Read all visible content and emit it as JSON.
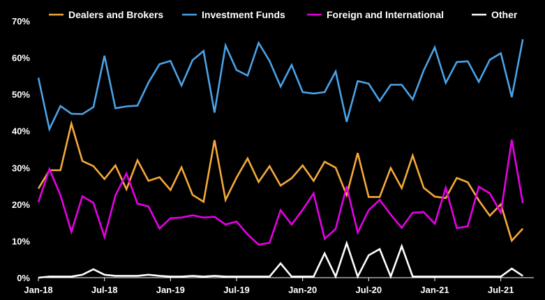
{
  "chart_data": {
    "type": "line",
    "title": "",
    "xlabel": "",
    "ylabel": "",
    "ylim": [
      0,
      70
    ],
    "y_ticks": [
      "0%",
      "10%",
      "20%",
      "30%",
      "40%",
      "50%",
      "60%",
      "70%"
    ],
    "x_ticks": [
      "Jan-18",
      "Jul-18",
      "Jan-19",
      "Jul-19",
      "Jan-20",
      "Jul-20",
      "Jan-21",
      "Jul-21"
    ],
    "x_start": "2018-01",
    "x_end": "2021-10",
    "grid": false,
    "legend_position": "top",
    "series": [
      {
        "name": "Dealers and Brokers",
        "color": "#f5a93b",
        "values": [
          24.3,
          29.3,
          29.3,
          42.0,
          31.8,
          30.4,
          26.9,
          30.6,
          24.1,
          32.0,
          26.4,
          27.4,
          23.9,
          30.1,
          22.6,
          20.7,
          37.5,
          21.2,
          27.3,
          32.5,
          26.1,
          30.4,
          25.1,
          27.1,
          30.6,
          26.4,
          31.6,
          30.0,
          22.5,
          34.0,
          22.0,
          22.0,
          29.9,
          24.4,
          33.3,
          24.5,
          22.1,
          21.7,
          27.2,
          26.0,
          21.1,
          16.9,
          20.0,
          10.1,
          13.4
        ]
      },
      {
        "name": "Investment Funds",
        "color": "#4aa3e8",
        "values": [
          54.5,
          40.5,
          46.8,
          44.7,
          44.6,
          46.5,
          60.5,
          46.2,
          46.7,
          46.9,
          53.2,
          58.2,
          59.1,
          52.4,
          59.3,
          61.8,
          45.0,
          63.3,
          56.6,
          55.1,
          64.0,
          59.1,
          52.1,
          58.0,
          50.6,
          50.2,
          50.6,
          56.2,
          42.5,
          53.6,
          52.9,
          48.2,
          52.6,
          52.6,
          48.6,
          56.5,
          62.8,
          53.1,
          58.8,
          59.0,
          53.4,
          59.4,
          61.2,
          49.2,
          65.0
        ]
      },
      {
        "name": "Foreign and International",
        "color": "#e600e6",
        "values": [
          20.6,
          29.6,
          22.5,
          12.5,
          22.2,
          20.4,
          11.1,
          22.4,
          28.4,
          20.2,
          19.4,
          13.4,
          16.2,
          16.4,
          17.0,
          16.4,
          16.6,
          14.5,
          15.3,
          11.8,
          9.0,
          9.5,
          18.4,
          14.5,
          18.5,
          23.0,
          10.6,
          13.3,
          24.9,
          12.3,
          18.4,
          21.2,
          17.2,
          13.6,
          17.7,
          17.9,
          14.7,
          24.5,
          13.5,
          14.0,
          24.8,
          23.0,
          17.7,
          37.6,
          20.3
        ]
      },
      {
        "name": "Other",
        "color": "#ffffff",
        "values": [
          0.0,
          0.3,
          0.3,
          0.3,
          0.8,
          2.3,
          0.8,
          0.5,
          0.5,
          0.5,
          0.8,
          0.5,
          0.3,
          0.3,
          0.5,
          0.3,
          0.5,
          0.3,
          0.3,
          0.3,
          0.3,
          0.3,
          3.9,
          0.3,
          0.3,
          0.3,
          6.6,
          0.3,
          9.4,
          0.3,
          6.1,
          7.8,
          0.3,
          8.6,
          0.3,
          0.3,
          0.3,
          0.3,
          0.3,
          0.3,
          0.3,
          0.3,
          0.3,
          2.5,
          0.5
        ]
      }
    ]
  }
}
